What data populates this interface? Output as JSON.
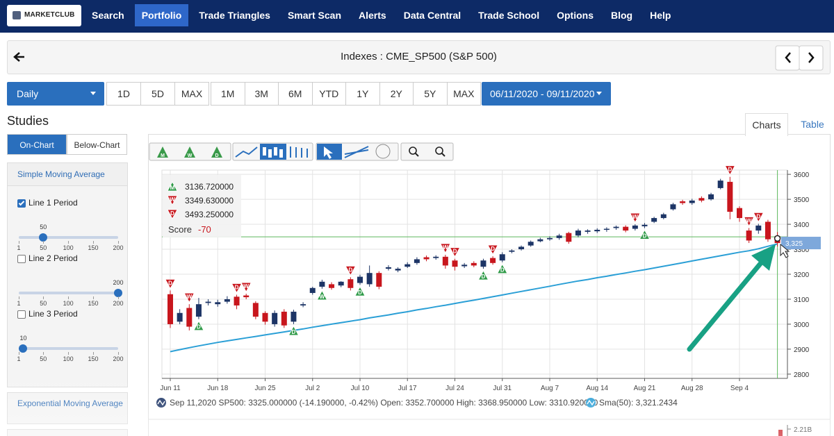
{
  "nav": {
    "logo": "MARKETCLUB",
    "items": [
      "Search",
      "Portfolio",
      "Trade Triangles",
      "Smart Scan",
      "Alerts",
      "Data Central",
      "Trade School",
      "Options",
      "Blog",
      "Help"
    ],
    "active": 1
  },
  "header": {
    "title": "Indexes : CME_SP500 (S&P 500)"
  },
  "toolbar": {
    "interval": "Daily",
    "group1": [
      "1D",
      "5D",
      "MAX"
    ],
    "group2": [
      "1M",
      "3M",
      "6M",
      "YTD",
      "1Y",
      "2Y",
      "5Y",
      "MAX"
    ],
    "date_range": "06/11/2020 - 09/11/2020"
  },
  "studies": {
    "title": "Studies",
    "tabs": [
      "On-Chart",
      "Below-Chart"
    ],
    "active_tab": 0,
    "sma": {
      "title": "Simple Moving Average",
      "slider_range": [
        1,
        200
      ],
      "ticks": [
        1,
        50,
        100,
        150,
        200
      ],
      "lines": [
        {
          "label": "Line 1 Period",
          "checked": true,
          "value": 50
        },
        {
          "label": "Line 2 Period",
          "checked": false,
          "value": 200
        },
        {
          "label": "Line 3 Period",
          "checked": false,
          "value": 10
        }
      ]
    },
    "ema": {
      "title": "Exponential Moving Average"
    }
  },
  "view_tabs": {
    "items": [
      "Charts",
      "Table"
    ],
    "active": 0
  },
  "chart_data": {
    "type": "candlestick",
    "chart_tools": [
      "M",
      "W",
      "D"
    ],
    "categories": [
      "Jun 11",
      null,
      null,
      null,
      null,
      "Jun 18",
      null,
      null,
      null,
      null,
      "Jun 25",
      null,
      null,
      null,
      null,
      "Jul 2",
      null,
      null,
      null,
      null,
      "Jul 10",
      null,
      null,
      null,
      null,
      "Jul 17",
      null,
      null,
      null,
      null,
      "Jul 24",
      null,
      null,
      null,
      null,
      "Jul 31",
      null,
      null,
      null,
      null,
      "Aug 7",
      null,
      null,
      null,
      null,
      "Aug 14",
      null,
      null,
      null,
      null,
      "Aug 21",
      null,
      null,
      null,
      null,
      "Aug 28",
      null,
      null,
      null,
      null,
      "Sep 4",
      null,
      null,
      null,
      null
    ],
    "open": [
      3120,
      3010,
      3065,
      3030,
      3085,
      3080,
      3090,
      3110,
      3115,
      3085,
      3045,
      3000,
      3050,
      3010,
      3075,
      3125,
      3150,
      3160,
      3155,
      3180,
      3165,
      3160,
      3205,
      3222,
      3215,
      3230,
      3245,
      3268,
      3265,
      3270,
      3255,
      3232,
      3245,
      3230,
      3265,
      3255,
      3290,
      3300,
      3315,
      3332,
      3340,
      3345,
      3365,
      3355,
      3370,
      3372,
      3378,
      3385,
      3390,
      3382,
      3392,
      3410,
      3425,
      3460,
      3492,
      3485,
      3505,
      3500,
      3545,
      3570,
      3465,
      3375,
      3375,
      3410,
      3352.7
    ],
    "high": [
      3135,
      3060,
      3080,
      3105,
      3100,
      3098,
      3112,
      3118,
      3122,
      3092,
      3052,
      3055,
      3060,
      3058,
      3088,
      3150,
      3178,
      3168,
      3172,
      3188,
      3198,
      3235,
      3212,
      3236,
      3228,
      3248,
      3268,
      3275,
      3276,
      3278,
      3262,
      3245,
      3252,
      3262,
      3272,
      3288,
      3300,
      3315,
      3335,
      3346,
      3352,
      3362,
      3370,
      3382,
      3380,
      3384,
      3388,
      3395,
      3396,
      3400,
      3405,
      3430,
      3446,
      3486,
      3498,
      3502,
      3512,
      3526,
      3582,
      3590,
      3472,
      3385,
      3402,
      3418,
      3368.95
    ],
    "low": [
      2985,
      3000,
      2975,
      3020,
      3075,
      3070,
      3082,
      3060,
      3100,
      3020,
      2998,
      2990,
      2985,
      3000,
      3068,
      3118,
      3142,
      3138,
      3148,
      3135,
      3158,
      3150,
      3140,
      3215,
      3208,
      3225,
      3238,
      3252,
      3258,
      3222,
      3215,
      3225,
      3228,
      3222,
      3238,
      3248,
      3284,
      3295,
      3310,
      3328,
      3334,
      3338,
      3322,
      3348,
      3362,
      3365,
      3370,
      3378,
      3368,
      3375,
      3385,
      3405,
      3420,
      3455,
      3478,
      3478,
      3488,
      3495,
      3540,
      3420,
      3410,
      3325,
      3362,
      3330,
      3310.92
    ],
    "close": [
      3000,
      3045,
      2990,
      3080,
      3090,
      3088,
      3100,
      3075,
      3108,
      3030,
      3010,
      3045,
      2995,
      3050,
      3080,
      3145,
      3170,
      3145,
      3170,
      3145,
      3190,
      3205,
      3150,
      3228,
      3222,
      3240,
      3260,
      3260,
      3270,
      3235,
      3230,
      3238,
      3235,
      3255,
      3245,
      3280,
      3295,
      3310,
      3330,
      3340,
      3345,
      3355,
      3330,
      3375,
      3375,
      3378,
      3382,
      3390,
      3375,
      3395,
      3398,
      3425,
      3440,
      3480,
      3485,
      3495,
      3495,
      3520,
      3575,
      3450,
      3425,
      3335,
      3395,
      3340,
      3325
    ],
    "up_color": "#1d3566",
    "down_color": "#c8161d",
    "sma": {
      "color": "#2a9fd6",
      "values": [
        2890,
        2898,
        2906,
        2913,
        2920,
        2927,
        2933,
        2939,
        2945,
        2951,
        2957,
        2963,
        2969,
        2975,
        2981,
        2988,
        2994,
        3000,
        3006,
        3012,
        3018,
        3025,
        3031,
        3037,
        3044,
        3050,
        3057,
        3063,
        3070,
        3076,
        3083,
        3090,
        3096,
        3103,
        3110,
        3117,
        3124,
        3131,
        3138,
        3145,
        3152,
        3159,
        3166,
        3173,
        3179,
        3186,
        3192,
        3199,
        3205,
        3212,
        3218,
        3225,
        3232,
        3239,
        3246,
        3253,
        3260,
        3267,
        3274,
        3281,
        3288,
        3294,
        3302,
        3312,
        3321.2434
      ]
    },
    "ylim": [
      2783,
      3617
    ],
    "yticks": [
      2800,
      2900,
      3000,
      3100,
      3200,
      3300,
      3400,
      3500,
      3600
    ],
    "grid": true,
    "score_box": {
      "levels": [
        {
          "icon": "M",
          "dir": "up",
          "value": 3136.72,
          "label": "3136.720000"
        },
        {
          "icon": "W",
          "dir": "down",
          "value": 3349.63,
          "label": "3349.630000"
        },
        {
          "icon": "D",
          "dir": "down",
          "value": 3493.25,
          "label": "3493.250000"
        }
      ],
      "score_label": "Score",
      "score": -70
    },
    "signals": [
      {
        "x": 0,
        "label": "D",
        "dir": "down"
      },
      {
        "x": 2,
        "label": "W",
        "dir": "down"
      },
      {
        "x": 3,
        "label": "D",
        "dir": "up"
      },
      {
        "x": 7,
        "label": "D",
        "dir": "down"
      },
      {
        "x": 8,
        "label": "W",
        "dir": "down"
      },
      {
        "x": 13,
        "label": "D",
        "dir": "up"
      },
      {
        "x": 16,
        "label": "W",
        "dir": "up"
      },
      {
        "x": 19,
        "label": "D",
        "dir": "down"
      },
      {
        "x": 20,
        "label": "D",
        "dir": "up"
      },
      {
        "x": 29,
        "label": "W",
        "dir": "down"
      },
      {
        "x": 30,
        "label": "D",
        "dir": "down"
      },
      {
        "x": 33,
        "label": "D",
        "dir": "up"
      },
      {
        "x": 34,
        "label": "D",
        "dir": "down"
      },
      {
        "x": 35,
        "label": "D",
        "dir": "up"
      },
      {
        "x": 49,
        "label": "W",
        "dir": "down"
      },
      {
        "x": 50,
        "label": "D",
        "dir": "up"
      },
      {
        "x": 59,
        "label": "D",
        "dir": "down"
      },
      {
        "x": 61,
        "label": "W",
        "dir": "down"
      },
      {
        "x": 62,
        "label": "D",
        "dir": "down"
      }
    ],
    "last_price": {
      "value": 3325,
      "label": "3,325"
    },
    "status_line": "Sep 11,2020 SP500: 3325.000000 (-14.190000, -0.42%) Open: 3352.700000 High: 3368.950000 Low: 3310.920000",
    "sma_status": "Sma(50): 3,321.2434",
    "lower_pane_ticks": [
      {
        "value": 2210000000,
        "label": "2.21B"
      }
    ]
  }
}
